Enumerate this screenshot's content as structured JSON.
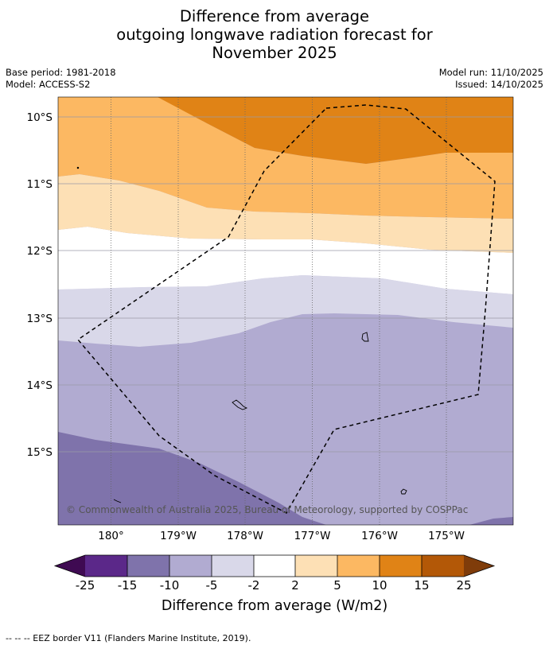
{
  "title": {
    "line1": "Difference from average",
    "line2": "outgoing longwave radiation forecast for",
    "line3": "November 2025"
  },
  "meta": {
    "base_period": "Base period: 1981-2018",
    "model": "Model: ACCESS-S2",
    "model_run": "Model run: 11/10/2025",
    "issued": "Issued: 14/10/2025"
  },
  "map": {
    "lat_labels": [
      "10°S",
      "11°S",
      "12°S",
      "13°S",
      "14°S",
      "15°S"
    ],
    "lon_labels": [
      "180°",
      "179°W",
      "178°W",
      "177°W",
      "176°W",
      "175°W"
    ],
    "copyright": "© Commonwealth of Australia 2025, Bureau of Meteorology, supported by COSPPac"
  },
  "colorbar": {
    "labels": [
      "-25",
      "-15",
      "-10",
      "-5",
      "-2",
      "2",
      "5",
      "10",
      "15",
      "25"
    ],
    "colors": {
      "below_min": "#3f0a52",
      "m25_m15": "#5b2889",
      "m15_m10": "#7f73ab",
      "m10_m5": "#b1abd1",
      "m5_m2": "#d9d8e9",
      "m2_2": "#ffffff",
      "p2_5": "#fde0b5",
      "p5_10": "#fcb862",
      "p10_15": "#e08316",
      "p15_25": "#b35807",
      "above_max": "#7f3c0a"
    },
    "title": "Difference from average (W/m2)"
  },
  "footnote": "--  --  -- EEZ border V11 (Flanders Marine Institute, 2019)."
}
